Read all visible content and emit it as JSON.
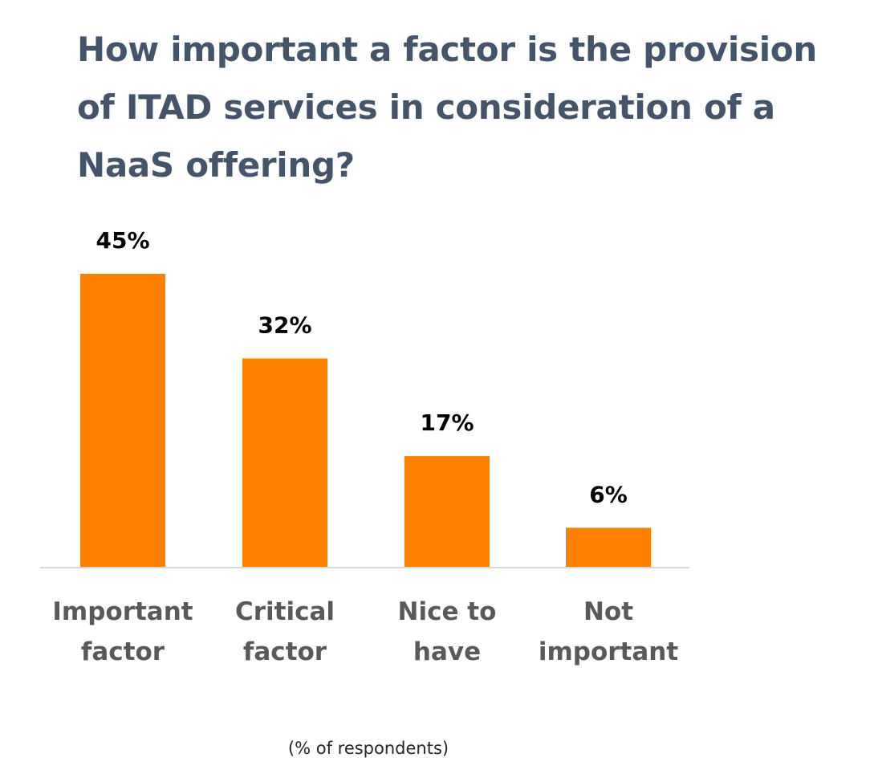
{
  "chart_data": {
    "type": "bar",
    "title": "How important a factor is the provision of ITAD services in consideration of a NaaS offering?",
    "categories": [
      [
        "Important",
        "factor"
      ],
      [
        "Critical",
        "factor"
      ],
      [
        "Nice to",
        "have"
      ],
      [
        "Not",
        "important"
      ]
    ],
    "values": [
      45,
      32,
      17,
      6
    ],
    "value_labels": [
      "45%",
      "32%",
      "17%",
      "6%"
    ],
    "unit": "%",
    "note": "(% of respondents)",
    "bar_color": "#ff8000",
    "axis_color": "#d9d9d9",
    "ylim": [
      0,
      45
    ],
    "grid": false,
    "legend": "none"
  }
}
